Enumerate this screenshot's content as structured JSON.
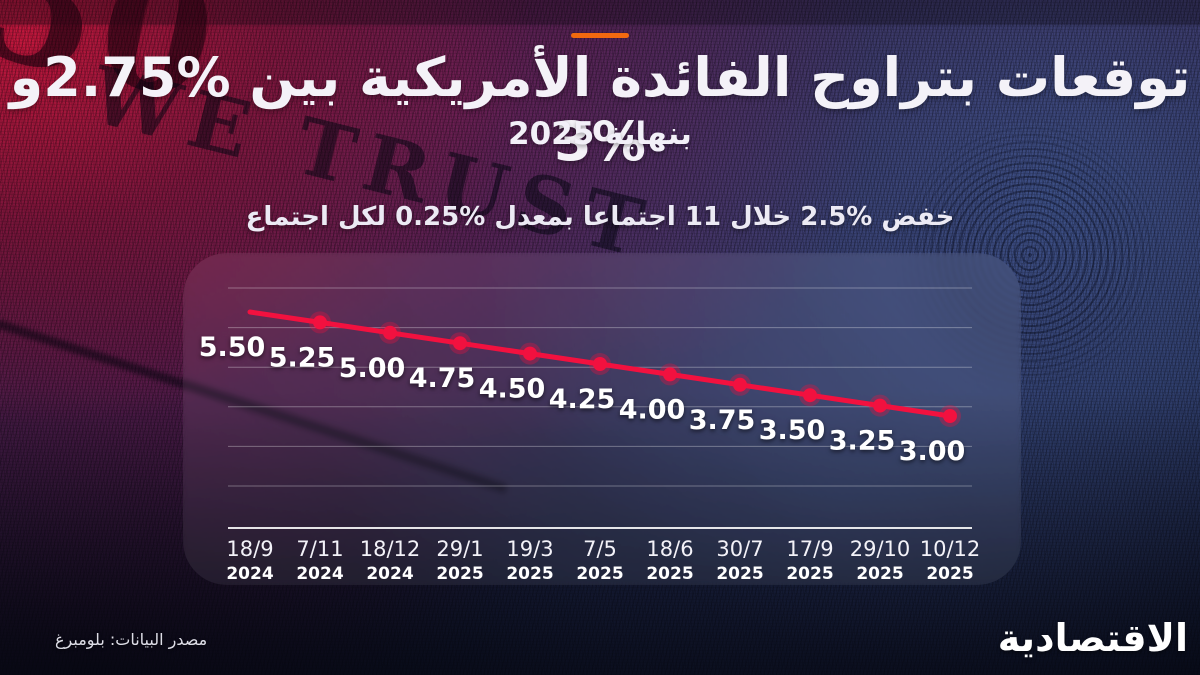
{
  "header": {
    "accent_dash_color": "#f2690f",
    "title": "توقعات بتراوح الفائدة الأمريكية بين %2.75و %3",
    "subtitle": "بنهاية 2025",
    "note": "خفض %2.5 خلال 11 اجتماعا بمعدل %0.25 لكل اجتماع"
  },
  "chart_data": {
    "type": "line",
    "x_labels": [
      {
        "day": "18/9",
        "year": "2024"
      },
      {
        "day": "7/11",
        "year": "2024"
      },
      {
        "day": "18/12",
        "year": "2024"
      },
      {
        "day": "29/1",
        "year": "2025"
      },
      {
        "day": "19/3",
        "year": "2025"
      },
      {
        "day": "7/5",
        "year": "2025"
      },
      {
        "day": "18/6",
        "year": "2025"
      },
      {
        "day": "30/7",
        "year": "2025"
      },
      {
        "day": "17/9",
        "year": "2025"
      },
      {
        "day": "29/10",
        "year": "2025"
      },
      {
        "day": "10/12",
        "year": "2025"
      }
    ],
    "values": [
      5.5,
      5.25,
      5.0,
      4.75,
      4.5,
      4.25,
      4.0,
      3.75,
      3.5,
      3.25,
      3.0
    ],
    "ylim": [
      2.75,
      5.75
    ],
    "grid": true,
    "gridline_count": 6,
    "marker_on_first_point": false,
    "line_color": "#f2113f",
    "point_color": "#f2113f",
    "grid_color": "rgba(255,255,255,0.32)",
    "axis_color": "rgba(255,255,255,0.88)",
    "label_color": "#ffffff"
  },
  "background": {
    "watermark_primary": "WE TRUST",
    "watermark_corner": "50"
  },
  "footer": {
    "source": "مصدر البيانات: بلومبرغ",
    "logo": "الاقتصادية"
  }
}
